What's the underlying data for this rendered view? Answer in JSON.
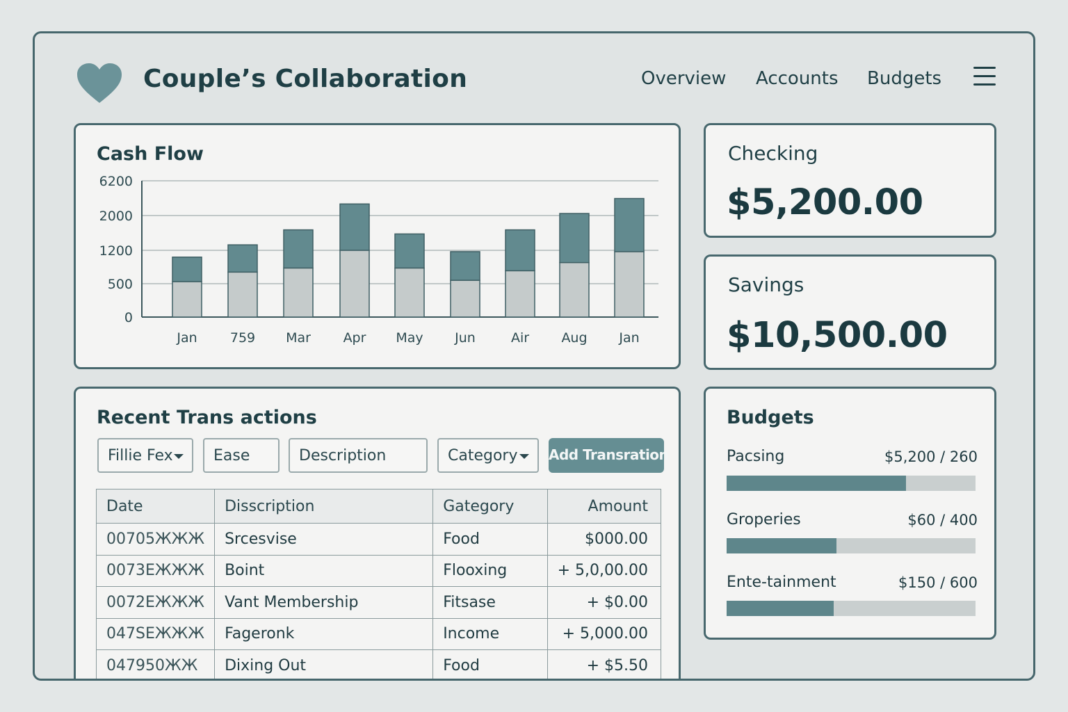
{
  "header": {
    "app_title": "Couple’s Collaboration",
    "nav": [
      "Overview",
      "Accounts",
      "Budgets"
    ],
    "accent_color": "#6b9399"
  },
  "cash_flow": {
    "title": "Cash Flow"
  },
  "chart_data": {
    "type": "bar",
    "stacked": true,
    "categories": [
      "Jan",
      "759",
      "Mar",
      "Apr",
      "May",
      "Jun",
      "Air",
      "Aug",
      "Jan"
    ],
    "y_ticks": [
      "0",
      "500",
      "1200",
      "2000",
      "6200"
    ],
    "series": [
      {
        "values": [
          0.26,
          0.33,
          0.36,
          0.49,
          0.36,
          0.27,
          0.34,
          0.4,
          0.48
        ],
        "color": "#c5cbcb"
      },
      {
        "values": [
          0.18,
          0.2,
          0.28,
          0.34,
          0.25,
          0.21,
          0.3,
          0.36,
          0.39
        ],
        "color": "#628a8f"
      }
    ],
    "note_values": "bar heights as fraction of plot height",
    "grid": true,
    "legend": "none"
  },
  "accounts": [
    {
      "label": "Checking",
      "value": "$5,200.00"
    },
    {
      "label": "Savings",
      "value": "$10,500.00"
    }
  ],
  "transactions": {
    "title": "Recent Trans actions",
    "filters": {
      "payer": "Fillie Fex",
      "ease": "Ease",
      "description": "Description",
      "category": "Category"
    },
    "add_button": "Add Transration",
    "columns": [
      "Date",
      "Disscription",
      "Gategory",
      "Amount"
    ],
    "rows": [
      [
        "00705ЖЖЖ",
        "Srcesvise",
        "Food",
        "$000.00"
      ],
      [
        "0073ЕЖЖЖ",
        "Boint",
        "Flooxing",
        "+ 5,0,00.00"
      ],
      [
        "0072ЕЖЖЖ",
        "Vant Membership",
        "Fitsase",
        "+ $0.00"
      ],
      [
        "047SЕЖЖЖ",
        "Fageronk",
        "Income",
        "+ 5,000.00"
      ],
      [
        "047950ЖЖ",
        "Dixing Out",
        "Food",
        "+ $5.50"
      ]
    ]
  },
  "budgets": {
    "title": "Budgets",
    "items": [
      {
        "name": "Pacsing",
        "amount": "$5,200 / 260",
        "progress": 0.72
      },
      {
        "name": "Groperies",
        "amount": "$60 / 400",
        "progress": 0.44
      },
      {
        "name": "Ente-tainment",
        "amount": "$150 / 600",
        "progress": 0.43
      }
    ]
  }
}
